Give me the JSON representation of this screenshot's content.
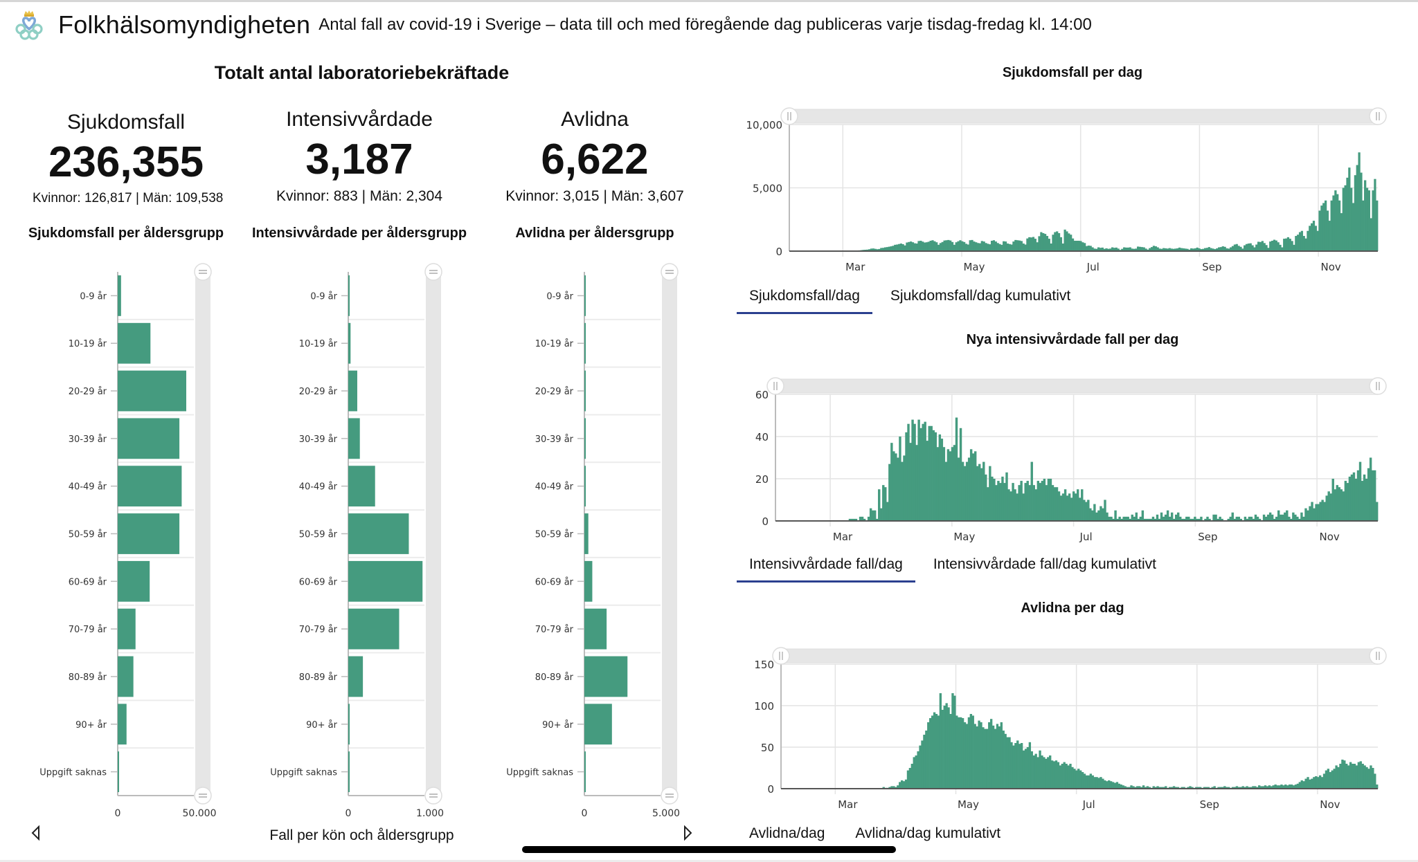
{
  "header": {
    "brand": "Folkhälsomyndigheten",
    "subtitle": "Antal fall av covid-19 i Sverige – data till och med föregående dag publiceras varje tisdag-fredag kl. 14:00",
    "logo_icon": "folkhalsomyndigheten-logo-icon"
  },
  "totals": {
    "title": "Totalt antal laboratoriebekräftade",
    "cards": [
      {
        "label": "Sjukdomsfall",
        "value": "236,355",
        "breakdown": "Kvinnor: 126,817 | Män: 109,538"
      },
      {
        "label": "Intensivvårdade",
        "value": "3,187",
        "breakdown": "Kvinnor: 883 | Män: 2,304"
      },
      {
        "label": "Avlidna",
        "value": "6,622",
        "breakdown": "Kvinnor: 3,015 | Män: 3,607"
      }
    ]
  },
  "bottom_nav": {
    "prev_icon": "triangle-left-icon",
    "next_icon": "triangle-right-icon",
    "title": "Fall per kön och åldersgrupp"
  },
  "colors": {
    "bar": "#459b7f",
    "tab_underline": "#2b3f8f",
    "grid": "#e4e4e4",
    "slider": "#e6e6e6"
  },
  "chart_data": [
    {
      "type": "bar",
      "orientation": "horizontal",
      "title": "Sjukdomsfall per åldersgrupp",
      "categories": [
        "0-9 år",
        "10-19 år",
        "20-29 år",
        "30-39 år",
        "40-49 år",
        "50-59 år",
        "60-69 år",
        "70-79 år",
        "80-89 år",
        "90+ år",
        "Uppgift saknas"
      ],
      "values": [
        2200,
        21500,
        45000,
        40500,
        42000,
        40500,
        21000,
        11700,
        10300,
        5800,
        200
      ],
      "xlim": [
        0,
        50000
      ],
      "xticks": [
        "0",
        "50,000"
      ]
    },
    {
      "type": "bar",
      "orientation": "horizontal",
      "title": "Intensivvårdade per åldersgrupp",
      "categories": [
        "0-9 år",
        "10-19 år",
        "20-29 år",
        "30-39 år",
        "40-49 år",
        "50-59 år",
        "60-69 år",
        "70-79 år",
        "80-89 år",
        "90+ år",
        "Uppgift saknas"
      ],
      "values": [
        18,
        30,
        118,
        152,
        352,
        795,
        975,
        668,
        192,
        18,
        5
      ],
      "xlim": [
        0,
        1000
      ],
      "xticks": [
        "0",
        "1,000"
      ]
    },
    {
      "type": "bar",
      "orientation": "horizontal",
      "title": "Avlidna per åldersgrupp",
      "categories": [
        "0-9 år",
        "10-19 år",
        "20-29 år",
        "30-39 år",
        "40-49 år",
        "50-59 år",
        "60-69 år",
        "70-79 år",
        "80-89 år",
        "90+ år",
        "Uppgift saknas"
      ],
      "values": [
        5,
        5,
        15,
        30,
        90,
        260,
        520,
        1460,
        2830,
        1810,
        5
      ],
      "xlim": [
        0,
        5000
      ],
      "xticks": [
        "0",
        "5,000"
      ]
    },
    {
      "type": "bar",
      "title": "Sjukdomsfall per dag",
      "ylim": [
        0,
        10000
      ],
      "yticks": [
        "0",
        "5,000",
        "10,000"
      ],
      "yticks_values": [
        0,
        5000,
        10000
      ],
      "xticks": [
        "Mar",
        "May",
        "Jul",
        "Sep",
        "Nov"
      ],
      "xticks_months": [
        2,
        4,
        6,
        8,
        10
      ],
      "start_month": 1.1,
      "end_month": 11.0,
      "series_description": "daily confirmed cases Feb–late Nov",
      "values": [
        0,
        0,
        0,
        0,
        0,
        0,
        0,
        0,
        0,
        0,
        0,
        0,
        0,
        0,
        0,
        0,
        0,
        0,
        0,
        0,
        0,
        0,
        0,
        0,
        0,
        0,
        0,
        0,
        0,
        0,
        0,
        0,
        10,
        20,
        40,
        60,
        80,
        100,
        110,
        120,
        150,
        200,
        210,
        180,
        150,
        170,
        250,
        260,
        300,
        320,
        350,
        380,
        420,
        500,
        520,
        560,
        600,
        550,
        450,
        680,
        720,
        760,
        700,
        620,
        600,
        800,
        820,
        750,
        680,
        700,
        740,
        820,
        860,
        780,
        700,
        500,
        640,
        720,
        840,
        860,
        880,
        840,
        720,
        500,
        700,
        780,
        860,
        780,
        720,
        580,
        520,
        860,
        880,
        760,
        700,
        640,
        620,
        800,
        760,
        640,
        580,
        540,
        820,
        860,
        760,
        640,
        560,
        500,
        780,
        760,
        600,
        560,
        520,
        760,
        880,
        860,
        840,
        800,
        600,
        520,
        1000,
        1100,
        1080,
        1120,
        980,
        700,
        1180,
        1500,
        1420,
        1360,
        1200,
        980,
        600,
        1300,
        1500,
        1560,
        1420,
        1100,
        600,
        1700,
        1560,
        1400,
        1300,
        1000,
        820,
        820,
        820,
        800,
        700,
        640,
        400,
        440,
        420,
        300,
        200,
        180,
        300,
        260,
        280,
        180,
        220,
        180,
        200,
        300,
        260,
        280,
        200,
        100,
        180,
        300,
        280,
        280,
        300,
        200,
        180,
        200,
        360,
        340,
        320,
        300,
        200,
        120,
        240,
        320,
        420,
        380,
        300,
        200,
        180,
        240,
        220,
        200,
        240,
        200,
        180,
        200,
        220,
        280,
        240,
        220,
        200,
        180,
        120,
        220,
        200,
        220,
        280,
        220,
        160,
        180,
        240,
        260,
        320,
        240,
        200,
        160,
        220,
        300,
        320,
        380,
        340,
        220,
        200,
        300,
        400,
        520,
        560,
        420,
        340,
        200,
        460,
        560,
        600,
        620,
        460,
        300,
        520,
        740,
        720,
        800,
        640,
        480,
        260,
        760,
        820,
        900,
        840,
        700,
        500,
        300,
        980,
        1000,
        1100,
        980,
        800,
        500,
        1200,
        1300,
        1500,
        1600,
        1200,
        1000,
        1600,
        2000,
        2200,
        2400,
        2000,
        1600,
        3200,
        3600,
        3800,
        4000,
        3200,
        2400,
        4000,
        4400,
        4800,
        4500,
        4000,
        3000,
        5000,
        5200,
        5800,
        6600,
        5000,
        3800,
        6000,
        6800,
        7800,
        6200,
        4000,
        5600,
        5000,
        4800,
        2600,
        4800,
        5700,
        4000
      ]
    },
    {
      "type": "bar",
      "title": "Nya intensivvårdade fall per dag",
      "ylim": [
        0,
        60
      ],
      "yticks": [
        "0",
        "20",
        "40",
        "60"
      ],
      "yticks_values": [
        0,
        20,
        40,
        60
      ],
      "xticks": [
        "Mar",
        "May",
        "Jul",
        "Sep",
        "Nov"
      ],
      "xticks_months": [
        2,
        4,
        6,
        8,
        10
      ],
      "start_month": 1.1,
      "end_month": 11.0,
      "values": [
        0,
        0,
        0,
        0,
        0,
        0,
        0,
        0,
        0,
        0,
        0,
        0,
        0,
        0,
        0,
        0,
        0,
        0,
        0,
        0,
        0,
        0,
        0,
        0,
        0,
        0,
        0,
        0,
        0,
        0,
        0,
        0,
        0,
        0,
        0,
        1,
        1,
        1,
        1,
        0,
        2,
        2,
        1,
        0,
        2,
        6,
        5,
        5,
        1,
        15,
        6,
        17,
        16,
        9,
        27,
        37,
        33,
        32,
        30,
        40,
        28,
        31,
        42,
        46,
        37,
        48,
        46,
        36,
        48,
        44,
        46,
        47,
        38,
        45,
        45,
        43,
        42,
        35,
        41,
        39,
        35,
        28,
        34,
        33,
        35,
        36,
        49,
        30,
        44,
        28,
        26,
        28,
        30,
        34,
        32,
        33,
        26,
        27,
        25,
        28,
        22,
        16,
        26,
        21,
        20,
        17,
        19,
        18,
        21,
        18,
        23,
        15,
        14,
        18,
        15,
        13,
        17,
        19,
        13,
        18,
        19,
        17,
        28,
        17,
        15,
        19,
        18,
        19,
        20,
        17,
        20,
        20,
        17,
        16,
        16,
        14,
        12,
        13,
        15,
        12,
        13,
        11,
        14,
        13,
        15,
        11,
        15,
        10,
        9,
        10,
        6,
        5,
        8,
        4,
        5,
        7,
        6,
        10,
        4,
        2,
        2,
        1,
        5,
        1,
        2,
        1,
        2,
        2,
        2,
        1,
        3,
        2,
        4,
        1,
        2,
        5,
        1,
        1,
        1,
        1,
        2,
        1,
        3,
        1,
        4,
        2,
        3,
        5,
        2,
        4,
        1,
        3,
        4,
        2,
        1,
        1,
        2,
        2,
        1,
        1,
        2,
        1,
        1,
        2,
        0,
        1,
        2,
        1,
        0,
        3,
        3,
        1,
        2,
        1,
        0,
        0,
        1,
        2,
        4,
        1,
        2,
        2,
        1,
        0,
        2,
        1,
        2,
        2,
        1,
        3,
        2,
        1,
        0,
        3,
        2,
        3,
        4,
        3,
        1,
        2,
        5,
        3,
        3,
        4,
        5,
        2,
        1,
        4,
        3,
        2,
        1,
        4,
        2,
        6,
        5,
        7,
        9,
        6,
        8,
        8,
        9,
        10,
        9,
        12,
        14,
        13,
        20,
        15,
        17,
        16,
        15,
        14,
        19,
        18,
        21,
        22,
        23,
        20,
        24,
        28,
        19,
        22,
        20,
        25,
        30,
        24,
        24,
        9
      ],
      "note": "approximate daily values"
    },
    {
      "type": "bar",
      "title": "Avlidna per dag",
      "ylim": [
        0,
        150
      ],
      "yticks": [
        "0",
        "50",
        "100",
        "150"
      ],
      "yticks_values": [
        0,
        50,
        100,
        150
      ],
      "xticks": [
        "Mar",
        "May",
        "Jul",
        "Sep",
        "Nov"
      ],
      "xticks_months": [
        2,
        4,
        6,
        8,
        10
      ],
      "start_month": 1.1,
      "end_month": 11.0,
      "values": [
        0,
        0,
        0,
        0,
        0,
        0,
        0,
        0,
        0,
        0,
        0,
        0,
        0,
        0,
        0,
        0,
        0,
        0,
        0,
        0,
        0,
        0,
        0,
        0,
        0,
        0,
        0,
        0,
        0,
        0,
        0,
        0,
        0,
        0,
        0,
        0,
        0,
        0,
        0,
        0,
        0,
        0,
        0,
        0,
        0,
        0,
        0,
        0,
        0,
        0,
        2,
        1,
        1,
        2,
        3,
        3,
        2,
        4,
        8,
        10,
        9,
        11,
        22,
        25,
        30,
        38,
        40,
        45,
        52,
        58,
        65,
        70,
        80,
        85,
        88,
        92,
        90,
        88,
        115,
        95,
        100,
        103,
        98,
        90,
        115,
        112,
        88,
        86,
        86,
        85,
        80,
        78,
        86,
        90,
        88,
        78,
        75,
        82,
        80,
        74,
        72,
        72,
        80,
        84,
        76,
        72,
        78,
        75,
        80,
        70,
        66,
        62,
        62,
        56,
        52,
        55,
        58,
        54,
        55,
        46,
        48,
        50,
        56,
        45,
        40,
        42,
        38,
        46,
        40,
        38,
        36,
        38,
        40,
        34,
        33,
        34,
        32,
        28,
        30,
        32,
        30,
        28,
        30,
        26,
        24,
        22,
        24,
        22,
        20,
        18,
        16,
        16,
        18,
        16,
        14,
        14,
        13,
        14,
        12,
        10,
        9,
        10,
        9,
        8,
        7,
        8,
        6,
        5,
        4,
        3,
        2,
        2,
        4,
        3,
        2,
        3,
        3,
        2,
        4,
        2,
        3,
        2,
        1,
        3,
        2,
        3,
        2,
        2,
        2,
        3,
        1,
        2,
        2,
        3,
        2,
        2,
        1,
        2,
        2,
        1,
        2,
        3,
        2,
        1,
        2,
        2,
        2,
        1,
        2,
        2,
        2,
        1,
        2,
        3,
        1,
        2,
        2,
        2,
        3,
        2,
        2,
        1,
        2,
        2,
        3,
        2,
        2,
        3,
        2,
        3,
        2,
        2,
        3,
        3,
        2,
        4,
        3,
        3,
        4,
        3,
        4,
        3,
        4,
        5,
        4,
        4,
        5,
        4,
        5,
        4,
        5,
        5,
        4,
        5,
        6,
        8,
        10,
        9,
        12,
        14,
        11,
        12,
        14,
        15,
        14,
        16,
        14,
        18,
        22,
        24,
        20,
        22,
        24,
        28,
        26,
        30,
        35,
        34,
        30,
        28,
        32,
        30,
        30,
        28,
        32,
        33,
        30,
        28,
        26,
        24,
        28,
        25,
        18,
        5
      ],
      "note": "approximate daily values"
    }
  ],
  "time_series": [
    {
      "title": "Sjukdomsfall per dag",
      "tabs": [
        {
          "label": "Sjukdomsfall/dag",
          "active": true
        },
        {
          "label": "Sjukdomsfall/dag kumulativt",
          "active": false
        }
      ]
    },
    {
      "title": "Nya intensivvårdade fall per dag",
      "tabs": [
        {
          "label": "Intensivvårdade fall/dag",
          "active": true
        },
        {
          "label": "Intensivvårdade fall/dag kumulativt",
          "active": false
        }
      ]
    },
    {
      "title": "Avlidna per dag",
      "tabs": [
        {
          "label": "Avlidna/dag",
          "active": false
        },
        {
          "label": "Avlidna/dag kumulativt",
          "active": false
        }
      ]
    }
  ]
}
